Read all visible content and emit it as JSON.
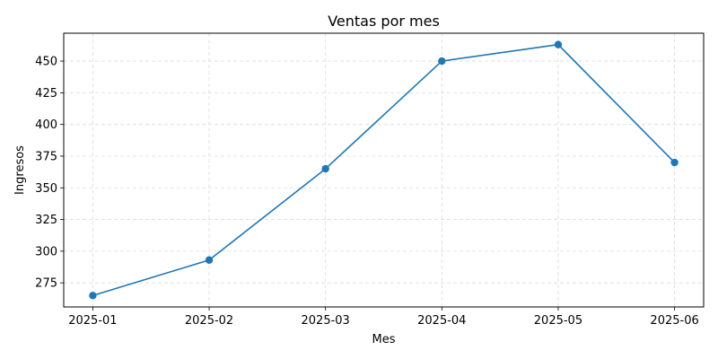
{
  "chart_data": {
    "type": "line",
    "title": "Ventas por mes",
    "xlabel": "Mes",
    "ylabel": "Ingresos",
    "categories": [
      "2025-01",
      "2025-02",
      "2025-03",
      "2025-04",
      "2025-05",
      "2025-06"
    ],
    "series": [
      {
        "values": [
          265,
          293,
          365,
          450,
          463,
          370
        ],
        "color": "#1f77b4"
      }
    ],
    "ylim": [
      256,
      472
    ],
    "yticks": [
      275,
      300,
      325,
      350,
      375,
      400,
      425,
      450
    ],
    "grid": true,
    "grid_style": "dashed",
    "markers": true
  }
}
